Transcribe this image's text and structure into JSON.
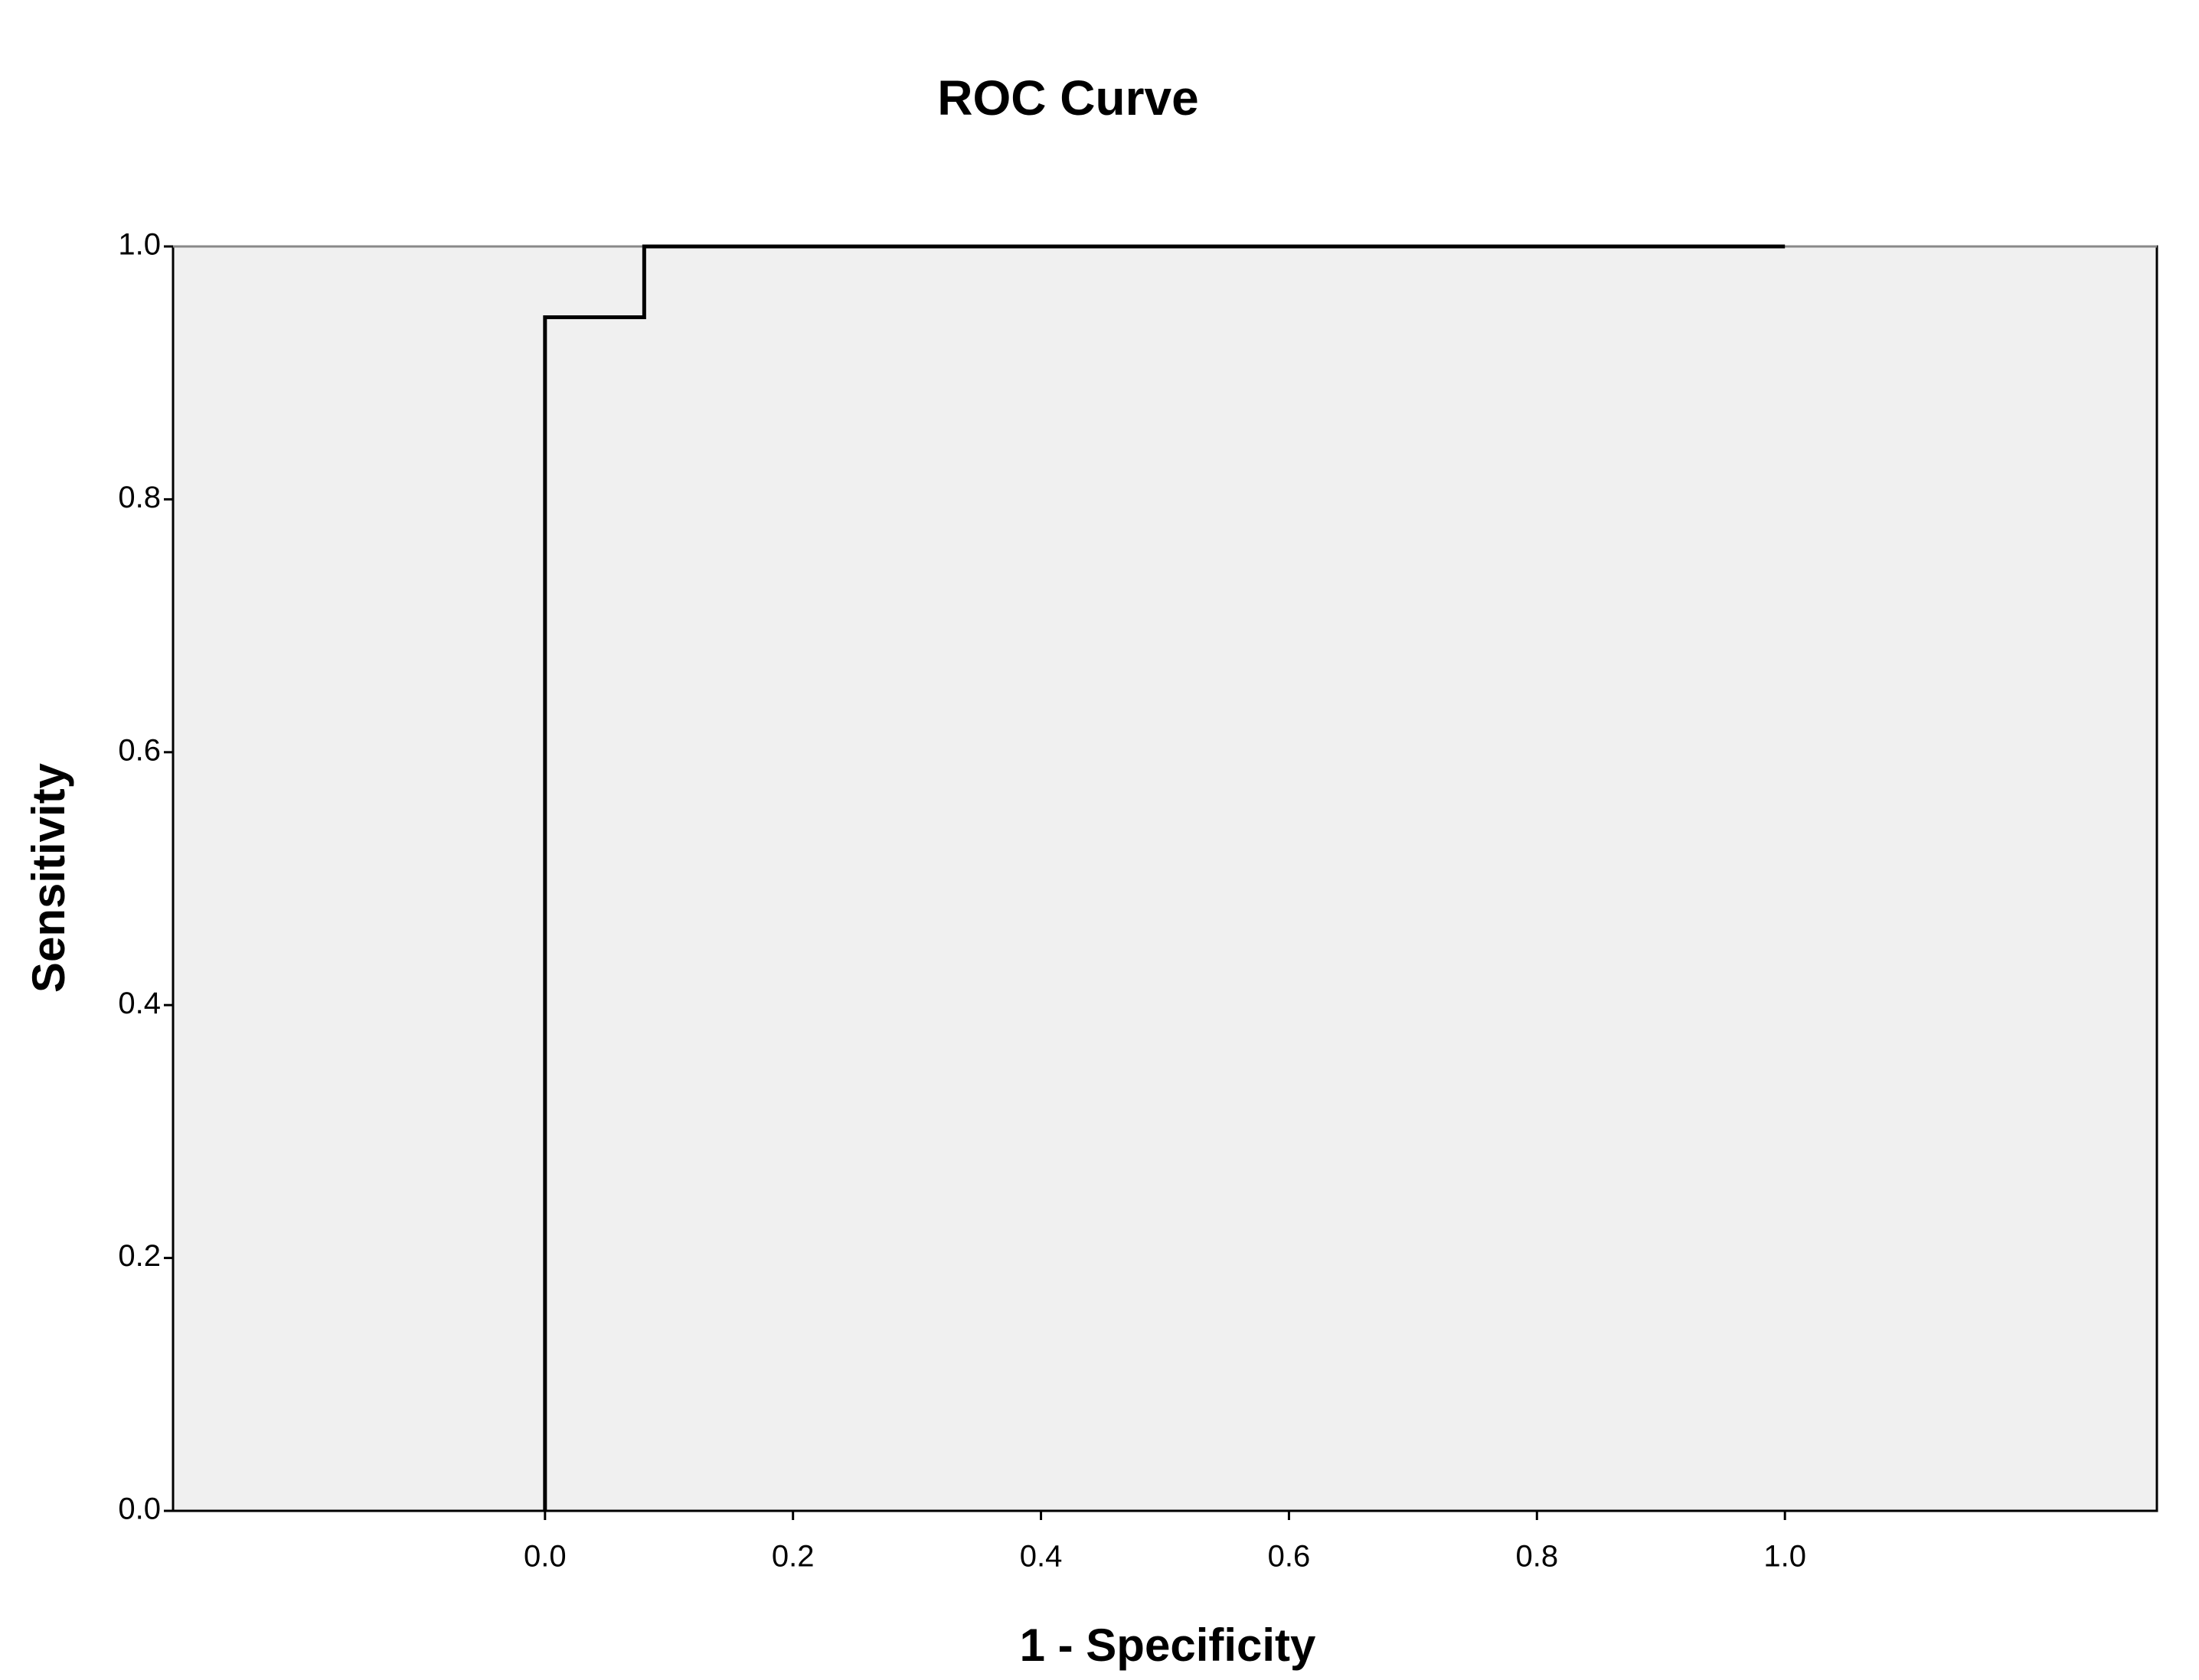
{
  "chart_data": {
    "type": "line",
    "title": "ROC Curve",
    "x_label": "1 - Specificity",
    "y_label": "Sensitivity",
    "x": [
      0,
      0,
      0.08,
      0.08,
      1
    ],
    "series": [
      {
        "color": "#000000",
        "values": [
          0,
          0.944,
          0.944,
          1,
          1
        ]
      }
    ],
    "xlim": [
      -0.3,
      1.3
    ],
    "ylim": [
      0,
      1
    ],
    "xticks": [
      {
        "value": 0,
        "label": "0.0"
      },
      0.2,
      0.4,
      0.6,
      0.8,
      {
        "value": 1,
        "label": "1.0"
      }
    ],
    "yticks": [
      {
        "value": 0,
        "label": "0.0"
      },
      0.2,
      0.4,
      0.6,
      0.8,
      {
        "value": 1,
        "label": "1.0"
      }
    ],
    "grid": false,
    "plot_background": "#f0f0f0"
  }
}
